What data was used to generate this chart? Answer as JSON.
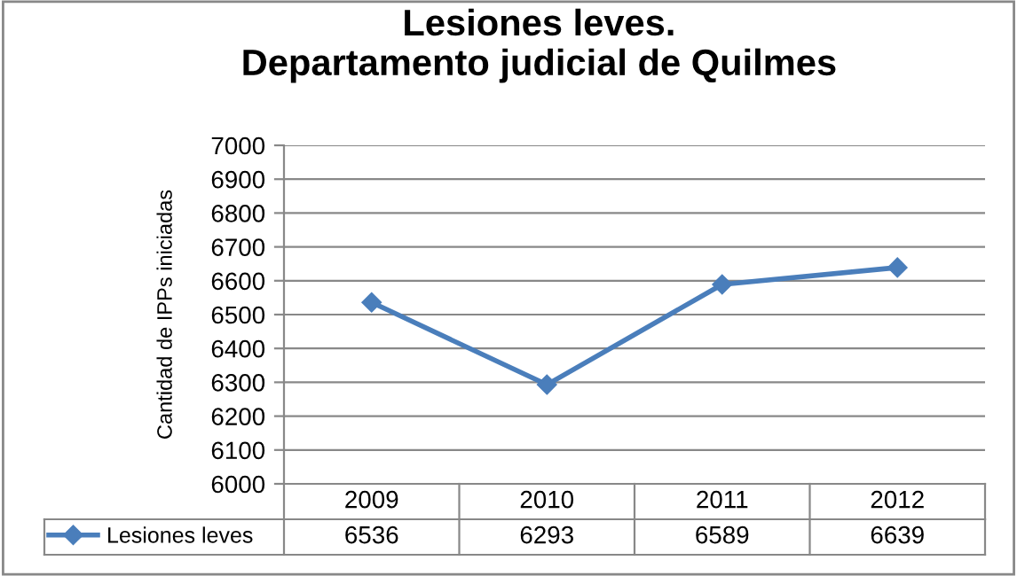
{
  "chart_data": {
    "type": "line",
    "title": "Lesiones leves.\nDepartamento judicial de Quilmes",
    "ylabel": "Cantidad de IPPs iniciadas",
    "categories": [
      "2009",
      "2010",
      "2011",
      "2012"
    ],
    "series": [
      {
        "name": "Lesiones leves",
        "color": "#4a7ebb",
        "values": [
          6536,
          6293,
          6589,
          6639
        ]
      }
    ],
    "ylim": [
      6000,
      7000
    ],
    "yticks": [
      6000,
      6100,
      6200,
      6300,
      6400,
      6500,
      6600,
      6700,
      6800,
      6900,
      7000
    ],
    "grid": "y",
    "marker": "diamond",
    "line_style": "solid",
    "data_labels": true,
    "legend": "bottom left"
  }
}
